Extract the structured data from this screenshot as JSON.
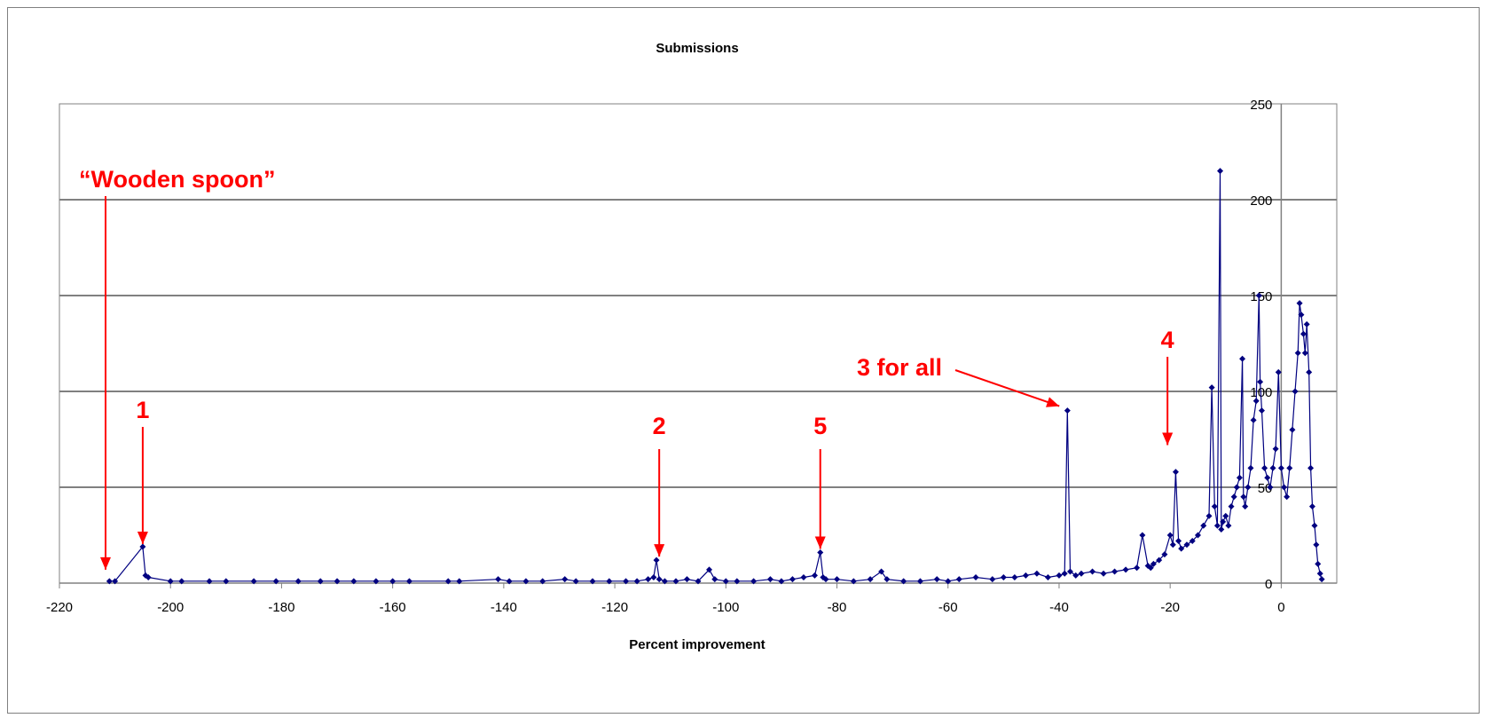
{
  "chart_data": {
    "type": "line",
    "title": "Submissions",
    "xlabel": "Percent improvement",
    "ylabel": "",
    "xlim": [
      -220,
      10
    ],
    "ylim": [
      0,
      250
    ],
    "xticks": [
      -220,
      -200,
      -180,
      -160,
      -140,
      -120,
      -100,
      -80,
      -60,
      -40,
      -20,
      0
    ],
    "yticks": [
      0,
      50,
      100,
      150,
      200,
      250
    ],
    "grid": "horizontal",
    "legend": "none",
    "series_color": "#000080",
    "annotation_color": "#ff0000",
    "series": [
      {
        "x": [
          -211,
          -210,
          -205,
          -204.5,
          -204,
          -200,
          -198,
          -193,
          -190,
          -185,
          -181,
          -177,
          -173,
          -170,
          -167,
          -163,
          -160,
          -157,
          -150,
          -148,
          -141,
          -139,
          -136,
          -133,
          -129,
          -127,
          -124,
          -121,
          -118,
          -116,
          -114,
          -113,
          -112.5,
          -112,
          -111,
          -109,
          -107,
          -105,
          -103,
          -102,
          -100,
          -98,
          -95,
          -92,
          -90,
          -88,
          -86,
          -84,
          -83,
          -82.5,
          -82,
          -80,
          -77,
          -74,
          -72,
          -71,
          -68,
          -65,
          -62,
          -60,
          -58,
          -55,
          -52,
          -50,
          -48,
          -46,
          -44,
          -42,
          -40,
          -39,
          -38.5,
          -38,
          -37,
          -36,
          -34,
          -32,
          -30,
          -28,
          -26,
          -25,
          -24,
          -23.5,
          -23,
          -22,
          -21,
          -20,
          -19.5,
          -19,
          -18.5,
          -18,
          -17,
          -16,
          -15,
          -14,
          -13,
          -12.5,
          -12,
          -11.5,
          -11,
          -10.8,
          -10.5,
          -10,
          -9.5,
          -9,
          -8.5,
          -8,
          -7.5,
          -7,
          -6.8,
          -6.5,
          -6,
          -5.5,
          -5,
          -4.5,
          -4,
          -3.8,
          -3.5,
          -3,
          -2.5,
          -2,
          -1.5,
          -1,
          -0.5,
          0,
          0.5,
          1,
          1.5,
          2,
          2.5,
          3,
          3.3,
          3.6,
          4,
          4.3,
          4.6,
          5,
          5.3,
          5.6,
          6,
          6.3,
          6.6,
          7,
          7.3
        ],
        "y": [
          1,
          1,
          19,
          4,
          3,
          1,
          1,
          1,
          1,
          1,
          1,
          1,
          1,
          1,
          1,
          1,
          1,
          1,
          1,
          1,
          2,
          1,
          1,
          1,
          2,
          1,
          1,
          1,
          1,
          1,
          2,
          3,
          12,
          2,
          1,
          1,
          2,
          1,
          7,
          2,
          1,
          1,
          1,
          2,
          1,
          2,
          3,
          4,
          16,
          3,
          2,
          2,
          1,
          2,
          6,
          2,
          1,
          1,
          2,
          1,
          2,
          3,
          2,
          3,
          3,
          4,
          5,
          3,
          4,
          5,
          90,
          6,
          4,
          5,
          6,
          5,
          6,
          7,
          8,
          25,
          9,
          8,
          10,
          12,
          15,
          25,
          20,
          58,
          22,
          18,
          20,
          22,
          25,
          30,
          35,
          102,
          40,
          30,
          215,
          28,
          32,
          35,
          30,
          40,
          45,
          50,
          55,
          117,
          45,
          40,
          50,
          60,
          85,
          95,
          150,
          105,
          90,
          60,
          55,
          50,
          60,
          70,
          110,
          60,
          50,
          45,
          60,
          80,
          100,
          120,
          146,
          140,
          130,
          120,
          135,
          110,
          60,
          40,
          30,
          20,
          10,
          5,
          2
        ]
      }
    ],
    "annotations": [
      {
        "text": "“Wooden spoon”",
        "x": -212,
        "y": 7
      },
      {
        "text": "1",
        "x": -205,
        "y": 19
      },
      {
        "text": "2",
        "x": -112,
        "y": 12
      },
      {
        "text": "5",
        "x": -83,
        "y": 16
      },
      {
        "text": "3 for all",
        "x": -39,
        "y": 90
      },
      {
        "text": "4",
        "x": -20,
        "y": 72
      }
    ]
  }
}
